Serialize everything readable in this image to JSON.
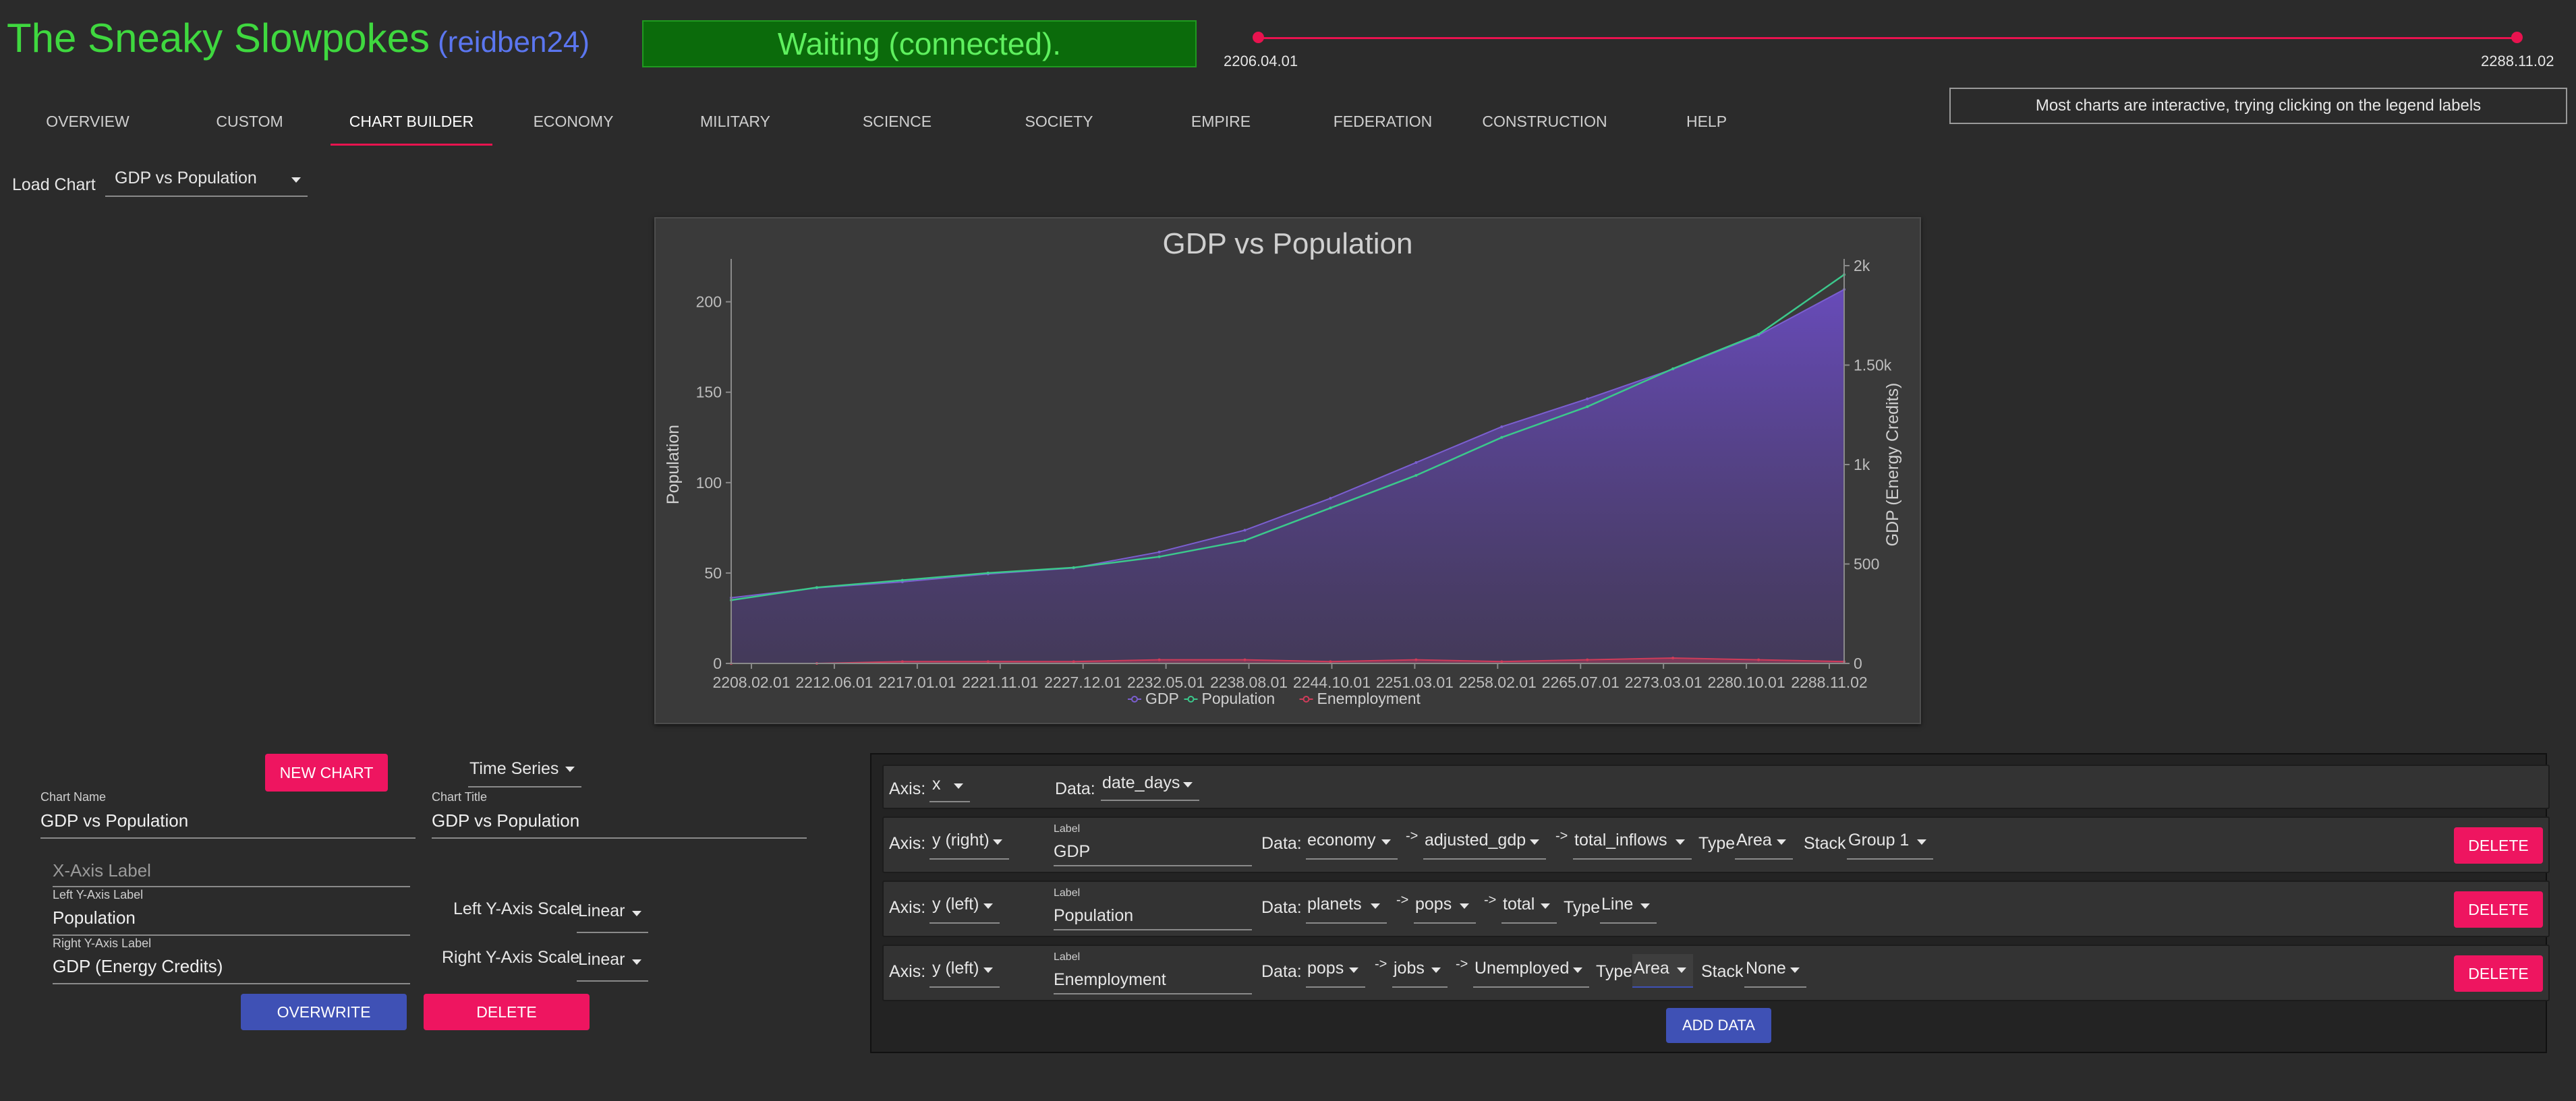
{
  "header": {
    "title": "The Sneaky Slowpokes",
    "user": "(reidben24)",
    "status": "Waiting (connected).",
    "range_start": "2206.04.01",
    "range_end": "2288.11.02",
    "tip": "Most charts are interactive, trying clicking on the legend labels"
  },
  "tabs": [
    "OVERVIEW",
    "CUSTOM",
    "CHART BUILDER",
    "ECONOMY",
    "MILITARY",
    "SCIENCE",
    "SOCIETY",
    "EMPIRE",
    "FEDERATION",
    "CONSTRUCTION",
    "HELP"
  ],
  "load_chart": {
    "label": "Load Chart",
    "value": "GDP vs Population"
  },
  "chart_data": {
    "type": "line",
    "title": "GDP vs Population",
    "ylabel": "Population",
    "y2label": "GDP (Energy Credits)",
    "xlabel": "",
    "x_ticks": [
      "2208.02.01",
      "2212.06.01",
      "2217.01.01",
      "2221.11.01",
      "2227.12.01",
      "2232.05.01",
      "2238.08.01",
      "2244.10.01",
      "2251.03.01",
      "2258.02.01",
      "2265.07.01",
      "2273.03.01",
      "2280.10.01",
      "2288.11.02"
    ],
    "y_ticks": [
      "0",
      "50",
      "100",
      "150",
      "200"
    ],
    "y2_ticks": [
      "0",
      "500",
      "1k",
      "1.50k",
      "2k"
    ],
    "ylim": [
      0,
      220
    ],
    "y2lim": [
      0,
      2000
    ],
    "legend_position": "bottom",
    "x": [
      "2208.02.01",
      "2212.06.01",
      "2217.01.01",
      "2221.11.01",
      "2227.12.01",
      "2232.05.01",
      "2238.08.01",
      "2244.10.01",
      "2251.03.01",
      "2258.02.01",
      "2265.07.01",
      "2273.03.01",
      "2280.10.01",
      "2288.11.02"
    ],
    "series": [
      {
        "name": "GDP",
        "axis": "right",
        "kind": "area",
        "color": "#7b5fd0",
        "values": [
          330,
          380,
          410,
          450,
          480,
          560,
          670,
          830,
          1010,
          1190,
          1330,
          1480,
          1650,
          1880
        ]
      },
      {
        "name": "Population",
        "axis": "left",
        "kind": "line",
        "color": "#3cc88c",
        "values": [
          35,
          42,
          46,
          50,
          53,
          59,
          68,
          86,
          104,
          125,
          142,
          163,
          182,
          215
        ]
      },
      {
        "name": "Enemployment",
        "axis": "left",
        "kind": "area",
        "color": "#d03c5a",
        "values": [
          0,
          0,
          1,
          1,
          1,
          2,
          2,
          1,
          2,
          1,
          2,
          3,
          2,
          1
        ]
      }
    ]
  },
  "form": {
    "new_chart": "NEW CHART",
    "chart_type": "Time Series",
    "chart_name_label": "Chart Name",
    "chart_name": "GDP vs Population",
    "chart_title_label": "Chart Title",
    "chart_title": "GDP vs Population",
    "x_axis_placeholder": "X-Axis Label",
    "left_y_label": "Left Y-Axis Label",
    "left_y": "Population",
    "right_y_label": "Right Y-Axis Label",
    "right_y": "GDP (Energy Credits)",
    "left_scale_label": "Left Y-Axis Scale",
    "left_scale": "Linear",
    "right_scale_label": "Right Y-Axis Scale",
    "right_scale": "Linear",
    "overwrite": "OVERWRITE",
    "delete": "DELETE"
  },
  "data_rows": {
    "axis_label": "Axis:",
    "data_label": "Data:",
    "type_label": "Type",
    "stack_label": "Stack",
    "label_label": "Label",
    "arrow": "->",
    "delete": "DELETE",
    "add_data": "ADD DATA",
    "x_row": {
      "axis": "x",
      "data": "date_days"
    },
    "rows": [
      {
        "axis": "y (right)",
        "label": "GDP",
        "path": [
          "economy",
          "adjusted_gdp",
          "total_inflows"
        ],
        "type": "Area",
        "stack": "Group 1"
      },
      {
        "axis": "y (left)",
        "label": "Population",
        "path": [
          "planets",
          "pops",
          "total"
        ],
        "type": "Line",
        "stack": ""
      },
      {
        "axis": "y (left)",
        "label": "Enemployment",
        "path": [
          "pops",
          "jobs",
          "Unemployed"
        ],
        "type": "Area",
        "stack": "None"
      }
    ]
  }
}
